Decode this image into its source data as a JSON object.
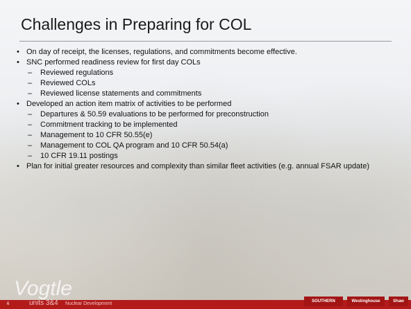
{
  "title": "Challenges in Preparing for COL",
  "bullets": [
    {
      "text": "On day of receipt, the licenses, regulations, and commitments become effective.",
      "subitems": []
    },
    {
      "text": "SNC performed readiness review for first day COLs",
      "subitems": [
        "Reviewed regulations",
        "Reviewed COLs",
        "Reviewed license statements and commitments"
      ]
    },
    {
      "text": "Developed an action item matrix of activities to be performed",
      "subitems": [
        "Departures & 50.59 evaluations to be performed for preconstruction",
        "Commitment tracking to be implemented",
        "Management to 10 CFR 50.55(e)",
        "Management to COL QA program and 10 CFR 50.54(a)",
        "10 CFR 19.11 postings"
      ]
    },
    {
      "text": "Plan for initial greater resources and complexity than similar fleet activities (e.g. annual FSAR update)",
      "subitems": []
    }
  ],
  "footer": {
    "logo": "Vogtle",
    "page": "6",
    "subtitle": "units 3&4",
    "tagline": "Nuclear Development",
    "partners": [
      "SOUTHERN COMPANY",
      "Westinghouse",
      "Shaw"
    ]
  }
}
